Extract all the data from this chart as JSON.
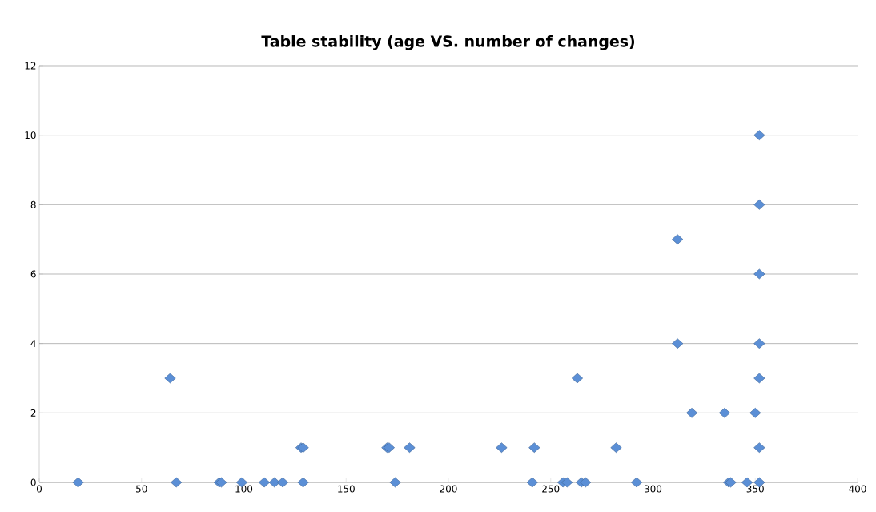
{
  "chart_data": {
    "type": "scatter",
    "title": "Table stability (age VS. number of changes)",
    "x": [
      19,
      64,
      67,
      88,
      89,
      99,
      110,
      115,
      119,
      128,
      129,
      129,
      170,
      171,
      174,
      181,
      226,
      241,
      242,
      256,
      258,
      263,
      265,
      267,
      282,
      292,
      312,
      312,
      319,
      335,
      337,
      338,
      346,
      350,
      352,
      352,
      352,
      352,
      352,
      352,
      352
    ],
    "series": [
      {
        "color": "#5b8fd6",
        "values": [
          0,
          3,
          0,
          0,
          0,
          0,
          0,
          0,
          0,
          1,
          1,
          0,
          1,
          1,
          0,
          1,
          1,
          0,
          1,
          0,
          0,
          3,
          0,
          0,
          1,
          0,
          7,
          4,
          2,
          2,
          0,
          0,
          0,
          2,
          0,
          1,
          3,
          4,
          6,
          8,
          10
        ]
      }
    ],
    "xlim": [
      0,
      400
    ],
    "xticks": [
      0,
      50,
      100,
      150,
      200,
      250,
      300,
      350,
      400
    ],
    "ylim": [
      0,
      12
    ],
    "yticks": [
      0,
      2,
      4,
      6,
      8,
      10,
      12
    ],
    "grid": "y",
    "marker": "diamond",
    "legend": false
  }
}
